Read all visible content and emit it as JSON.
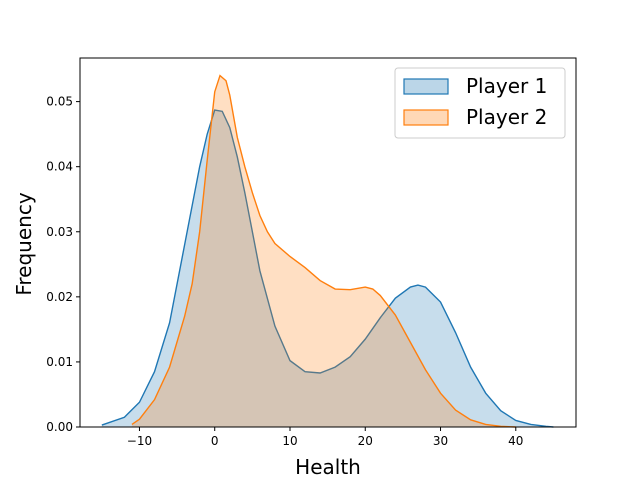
{
  "chart_data": {
    "type": "area",
    "title": "",
    "xlabel": "Health",
    "ylabel": "Frequency",
    "xlim": [
      -17.9,
      48.0
    ],
    "ylim": [
      0,
      0.0567
    ],
    "xticks": [
      -10,
      0,
      10,
      20,
      30,
      40
    ],
    "xtick_labels": [
      "−10",
      "0",
      "10",
      "20",
      "30",
      "40"
    ],
    "yticks": [
      0.0,
      0.01,
      0.02,
      0.03,
      0.04,
      0.05
    ],
    "ytick_labels": [
      "0.00",
      "0.01",
      "0.02",
      "0.03",
      "0.04",
      "0.05"
    ],
    "grid": false,
    "legend": "top-right",
    "series": [
      {
        "name": "Player 1",
        "color": "#1f77b4",
        "fill": "#1f77b4",
        "fill_opacity": 0.25,
        "x": [
          -15,
          -12,
          -10,
          -8,
          -6,
          -4,
          -2,
          -1,
          0,
          1,
          2,
          3,
          4,
          5,
          6,
          8,
          10,
          12,
          14,
          16,
          18,
          20,
          22,
          24,
          26,
          27,
          28,
          30,
          32,
          34,
          36,
          38,
          40,
          42,
          44,
          45
        ],
        "y": [
          0.0003,
          0.0015,
          0.0038,
          0.0085,
          0.016,
          0.028,
          0.04,
          0.045,
          0.0487,
          0.0485,
          0.046,
          0.0415,
          0.036,
          0.03,
          0.024,
          0.0155,
          0.0102,
          0.0085,
          0.0083,
          0.0092,
          0.0108,
          0.0135,
          0.0168,
          0.0198,
          0.0215,
          0.0218,
          0.0215,
          0.0192,
          0.0145,
          0.0092,
          0.0052,
          0.0025,
          0.001,
          0.0004,
          0.0001,
          0.0
        ]
      },
      {
        "name": "Player 2",
        "color": "#ff7f0e",
        "fill": "#ff7f0e",
        "fill_opacity": 0.25,
        "x": [
          -11,
          -10,
          -8,
          -6,
          -4,
          -3,
          -2,
          -1,
          0,
          0.7,
          1.5,
          2,
          3,
          4,
          5,
          6,
          7,
          8,
          10,
          12,
          14,
          16,
          18,
          20,
          21,
          22,
          24,
          26,
          28,
          30,
          32,
          34,
          36,
          38,
          40
        ],
        "y": [
          0.0004,
          0.0012,
          0.0042,
          0.0092,
          0.017,
          0.022,
          0.03,
          0.041,
          0.0515,
          0.054,
          0.0532,
          0.051,
          0.0445,
          0.04,
          0.036,
          0.0325,
          0.03,
          0.0282,
          0.0262,
          0.0245,
          0.0225,
          0.0212,
          0.0211,
          0.0215,
          0.0212,
          0.0202,
          0.0172,
          0.013,
          0.0088,
          0.0052,
          0.0026,
          0.0011,
          0.0004,
          0.0001,
          0.0
        ]
      }
    ]
  }
}
